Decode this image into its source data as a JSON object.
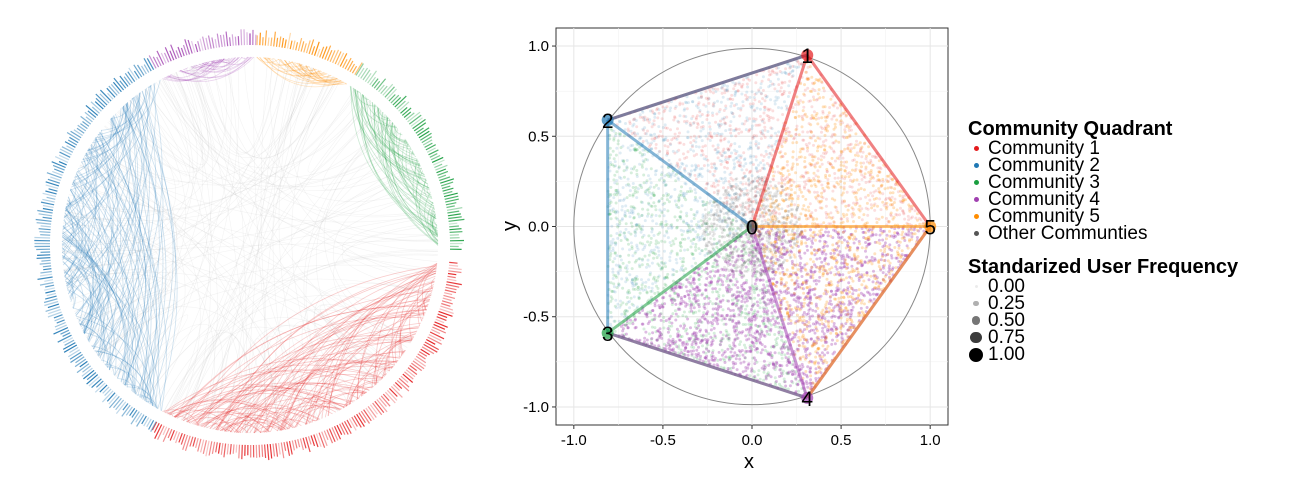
{
  "colors": {
    "community1": "#e41a1c",
    "community2": "#1f78b4",
    "community3": "#1a9e3f",
    "community4": "#a040b0",
    "community5": "#ff8c00",
    "other": "#555555"
  },
  "chart_data": [
    {
      "type": "other",
      "description_kind": "chord-diagram",
      "segments": [
        {
          "community": "Community 1",
          "color": "#e41a1c"
        },
        {
          "community": "Community 2",
          "color": "#1f78b4"
        },
        {
          "community": "Community 3",
          "color": "#1a9e3f"
        },
        {
          "community": "Community 4",
          "color": "#a040b0"
        },
        {
          "community": "Community 5",
          "color": "#ff8c00"
        }
      ]
    },
    {
      "type": "scatter",
      "xlabel": "x",
      "ylabel": "y",
      "xlim": [
        -1.1,
        1.1
      ],
      "ylim": [
        -1.1,
        1.1
      ],
      "xticks": [
        "-1.0",
        "-0.5",
        "0.0",
        "0.5",
        "1.0"
      ],
      "yticks": [
        "1.0",
        "0.5",
        "0.0",
        "-0.5",
        "-1.0"
      ],
      "grid": true,
      "unit_circle": true,
      "anchors": [
        {
          "label": "0",
          "x": 0.0,
          "y": 0.0
        },
        {
          "label": "1",
          "x": 0.31,
          "y": 0.95
        },
        {
          "label": "2",
          "x": -0.81,
          "y": 0.59
        },
        {
          "label": "3",
          "x": -0.81,
          "y": -0.59
        },
        {
          "label": "4",
          "x": 0.31,
          "y": -0.95
        },
        {
          "label": "5",
          "x": 1.0,
          "y": 0.0
        }
      ],
      "regions": [
        {
          "community": "Community 1",
          "polygon": [
            [
              0.31,
              0.95
            ],
            [
              1.0,
              0.0
            ],
            [
              0.0,
              0.0
            ],
            [
              -0.81,
              0.59
            ]
          ]
        },
        {
          "community": "Community 2",
          "polygon": [
            [
              -0.81,
              0.59
            ],
            [
              0.31,
              0.95
            ],
            [
              0.0,
              0.0
            ],
            [
              -0.81,
              -0.59
            ]
          ]
        },
        {
          "community": "Community 3",
          "polygon": [
            [
              -0.81,
              -0.59
            ],
            [
              -0.81,
              0.59
            ],
            [
              0.0,
              0.0
            ],
            [
              0.31,
              -0.95
            ]
          ]
        },
        {
          "community": "Community 4",
          "polygon": [
            [
              0.31,
              -0.95
            ],
            [
              -0.81,
              -0.59
            ],
            [
              0.0,
              0.0
            ],
            [
              1.0,
              0.0
            ]
          ]
        },
        {
          "community": "Community 5",
          "polygon": [
            [
              1.0,
              0.0
            ],
            [
              0.31,
              -0.95
            ],
            [
              0.0,
              0.0
            ],
            [
              0.31,
              0.95
            ]
          ]
        }
      ],
      "legend_placement": "right"
    }
  ],
  "legend": {
    "title": "Community Quadrant",
    "items": [
      {
        "label": "Community 1",
        "color": "#e41a1c"
      },
      {
        "label": "Community 2",
        "color": "#1f78b4"
      },
      {
        "label": "Community 3",
        "color": "#1a9e3f"
      },
      {
        "label": "Community 4",
        "color": "#a040b0"
      },
      {
        "label": "Community 5",
        "color": "#ff8c00"
      },
      {
        "label": "Other Communties",
        "color": "#555555"
      }
    ],
    "size_title": "Standarized User Frequency",
    "size_items": [
      {
        "label": "0.00",
        "value": 0.0
      },
      {
        "label": "0.25",
        "value": 0.25
      },
      {
        "label": "0.50",
        "value": 0.5
      },
      {
        "label": "0.75",
        "value": 0.75
      },
      {
        "label": "1.00",
        "value": 1.0
      }
    ]
  }
}
